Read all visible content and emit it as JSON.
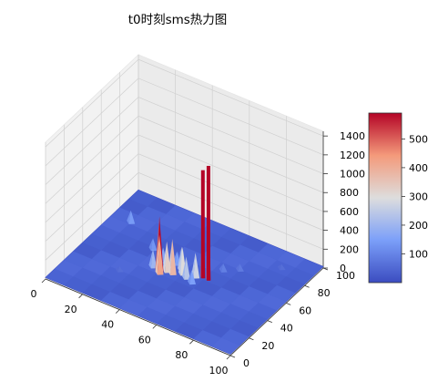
{
  "chart_data": {
    "type": "surface3d",
    "title": "t0时刻sms热力图",
    "colormap": "coolwarm",
    "x_axis": {
      "label": "",
      "ticks": [
        0,
        20,
        40,
        60,
        80,
        100
      ],
      "range": [
        0,
        100
      ]
    },
    "y_axis": {
      "label": "",
      "ticks": [
        0,
        20,
        40,
        60,
        80,
        100
      ],
      "range": [
        0,
        100
      ]
    },
    "z_axis": {
      "label": "",
      "ticks": [
        0,
        200,
        400,
        600,
        800,
        1000,
        1200,
        1400
      ],
      "range": [
        0,
        1450
      ]
    },
    "colorbar": {
      "ticks": [
        100,
        200,
        300,
        400,
        500
      ],
      "range": [
        0,
        590
      ]
    },
    "grid": true,
    "surface_baseline": 15,
    "peaks": [
      {
        "x": 62,
        "y": 52,
        "z": 1220
      },
      {
        "x": 59,
        "y": 52,
        "z": 1150
      },
      {
        "x": 40,
        "y": 43,
        "z": 590
      },
      {
        "x": 41,
        "y": 41,
        "z": 420
      },
      {
        "x": 43,
        "y": 45,
        "z": 330
      },
      {
        "x": 50,
        "y": 48,
        "z": 300
      },
      {
        "x": 48,
        "y": 51,
        "z": 260
      },
      {
        "x": 46,
        "y": 45,
        "z": 380
      },
      {
        "x": 53,
        "y": 46,
        "z": 240
      },
      {
        "x": 56,
        "y": 50,
        "z": 270
      },
      {
        "x": 57,
        "y": 44,
        "z": 150
      },
      {
        "x": 36,
        "y": 44,
        "z": 200
      },
      {
        "x": 38,
        "y": 51,
        "z": 170
      },
      {
        "x": 44,
        "y": 54,
        "z": 150
      },
      {
        "x": 29,
        "y": 58,
        "z": 130
      },
      {
        "x": 10,
        "y": 72,
        "z": 140
      },
      {
        "x": 64,
        "y": 64,
        "z": 90
      },
      {
        "x": 70,
        "y": 70,
        "z": 80
      },
      {
        "x": 25,
        "y": 30,
        "z": 60
      },
      {
        "x": 85,
        "y": 85,
        "z": 60
      }
    ]
  }
}
